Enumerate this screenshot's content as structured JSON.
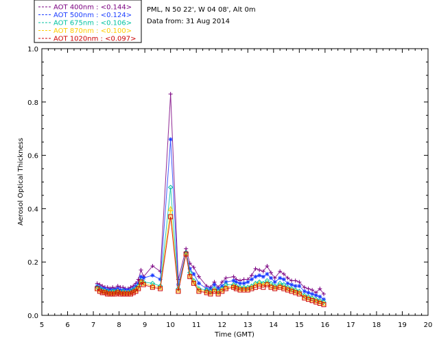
{
  "chart_data": {
    "type": "scatter",
    "title": "PML, N 50 22', W 04 08', Alt 0m",
    "subtitle": "Data from: 31 Aug 2014",
    "xlabel": "Time (GMT)",
    "ylabel": "Aerosol Optical Thickness",
    "xlim": [
      5,
      20
    ],
    "ylim": [
      0.0,
      1.0
    ],
    "x_ticks": [
      "5",
      "6",
      "7",
      "8",
      "9",
      "10",
      "11",
      "12",
      "13",
      "14",
      "15",
      "16",
      "17",
      "18",
      "19",
      "20"
    ],
    "y_ticks": [
      "0.0",
      "0.2",
      "0.4",
      "0.6",
      "0.8",
      "1.0"
    ],
    "legend_position": "top-left",
    "x": [
      7.15,
      7.25,
      7.35,
      7.45,
      7.55,
      7.65,
      7.75,
      7.85,
      7.95,
      8.05,
      8.15,
      8.25,
      8.35,
      8.45,
      8.55,
      8.65,
      8.75,
      8.85,
      8.95,
      9.3,
      9.6,
      10.0,
      10.3,
      10.6,
      10.75,
      10.9,
      11.1,
      11.4,
      11.55,
      11.7,
      11.85,
      12.0,
      12.15,
      12.45,
      12.55,
      12.7,
      12.85,
      13.0,
      13.15,
      13.3,
      13.45,
      13.6,
      13.75,
      13.9,
      14.05,
      14.25,
      14.4,
      14.55,
      14.7,
      14.85,
      15.0,
      15.2,
      15.35,
      15.5,
      15.65,
      15.8,
      15.95
    ],
    "series": [
      {
        "name": "AOT  400nm : <0.144>",
        "color": "#7a0080",
        "marker": "plus",
        "values": [
          0.12,
          0.115,
          0.11,
          0.105,
          0.105,
          0.1,
          0.105,
          0.1,
          0.11,
          0.105,
          0.105,
          0.1,
          0.1,
          0.105,
          0.11,
          0.12,
          0.135,
          0.17,
          0.145,
          0.185,
          0.165,
          0.83,
          0.135,
          0.25,
          0.195,
          0.18,
          0.145,
          0.11,
          0.105,
          0.125,
          0.105,
          0.125,
          0.14,
          0.145,
          0.135,
          0.13,
          0.135,
          0.135,
          0.15,
          0.175,
          0.17,
          0.165,
          0.185,
          0.16,
          0.14,
          0.165,
          0.155,
          0.14,
          0.13,
          0.13,
          0.125,
          0.105,
          0.1,
          0.095,
          0.085,
          0.1,
          0.08
        ]
      },
      {
        "name": "AOT  500nm : <0.124>",
        "color": "#1a3cff",
        "marker": "asterisk",
        "values": [
          0.11,
          0.105,
          0.1,
          0.1,
          0.095,
          0.095,
          0.095,
          0.095,
          0.1,
          0.095,
          0.095,
          0.095,
          0.095,
          0.095,
          0.1,
          0.11,
          0.12,
          0.145,
          0.14,
          0.15,
          0.135,
          0.66,
          0.115,
          0.235,
          0.175,
          0.155,
          0.12,
          0.1,
          0.1,
          0.115,
          0.1,
          0.11,
          0.125,
          0.13,
          0.125,
          0.12,
          0.12,
          0.125,
          0.135,
          0.145,
          0.15,
          0.145,
          0.155,
          0.14,
          0.125,
          0.14,
          0.135,
          0.12,
          0.115,
          0.11,
          0.11,
          0.09,
          0.085,
          0.08,
          0.075,
          0.07,
          0.06
        ]
      },
      {
        "name": "AOT  675nm : <0.106>",
        "color": "#00c2a0",
        "marker": "diamond",
        "values": [
          0.105,
          0.1,
          0.095,
          0.09,
          0.09,
          0.085,
          0.09,
          0.09,
          0.09,
          0.085,
          0.09,
          0.085,
          0.085,
          0.09,
          0.095,
          0.1,
          0.11,
          0.13,
          0.125,
          0.12,
          0.11,
          0.48,
          0.1,
          0.235,
          0.16,
          0.13,
          0.1,
          0.095,
          0.09,
          0.1,
          0.09,
          0.1,
          0.115,
          0.115,
          0.11,
          0.105,
          0.105,
          0.105,
          0.11,
          0.12,
          0.125,
          0.12,
          0.13,
          0.12,
          0.11,
          0.12,
          0.115,
          0.105,
          0.1,
          0.095,
          0.09,
          0.075,
          0.07,
          0.065,
          0.06,
          0.055,
          0.05
        ]
      },
      {
        "name": "AOT  870nm : <0.100>",
        "color": "#ffcc00",
        "marker": "triangle",
        "values": [
          0.1,
          0.095,
          0.09,
          0.09,
          0.085,
          0.085,
          0.085,
          0.085,
          0.09,
          0.085,
          0.085,
          0.085,
          0.085,
          0.085,
          0.09,
          0.095,
          0.105,
          0.125,
          0.12,
          0.11,
          0.105,
          0.4,
          0.095,
          0.23,
          0.15,
          0.125,
          0.095,
          0.09,
          0.085,
          0.095,
          0.085,
          0.095,
          0.105,
          0.11,
          0.105,
          0.1,
          0.1,
          0.1,
          0.105,
          0.115,
          0.12,
          0.115,
          0.12,
          0.11,
          0.105,
          0.11,
          0.105,
          0.1,
          0.095,
          0.09,
          0.085,
          0.07,
          0.065,
          0.06,
          0.055,
          0.05,
          0.045
        ]
      },
      {
        "name": "AOT 1020nm : <0.097>",
        "color": "#cc0000",
        "marker": "square",
        "values": [
          0.1,
          0.09,
          0.085,
          0.085,
          0.08,
          0.08,
          0.08,
          0.08,
          0.085,
          0.08,
          0.08,
          0.08,
          0.08,
          0.08,
          0.085,
          0.09,
          0.1,
          0.125,
          0.115,
          0.105,
          0.1,
          0.37,
          0.09,
          0.23,
          0.145,
          0.12,
          0.09,
          0.085,
          0.08,
          0.09,
          0.08,
          0.09,
          0.1,
          0.105,
          0.1,
          0.095,
          0.095,
          0.095,
          0.1,
          0.105,
          0.11,
          0.105,
          0.115,
          0.105,
          0.1,
          0.105,
          0.1,
          0.095,
          0.09,
          0.085,
          0.08,
          0.065,
          0.06,
          0.055,
          0.05,
          0.045,
          0.04
        ]
      }
    ]
  }
}
